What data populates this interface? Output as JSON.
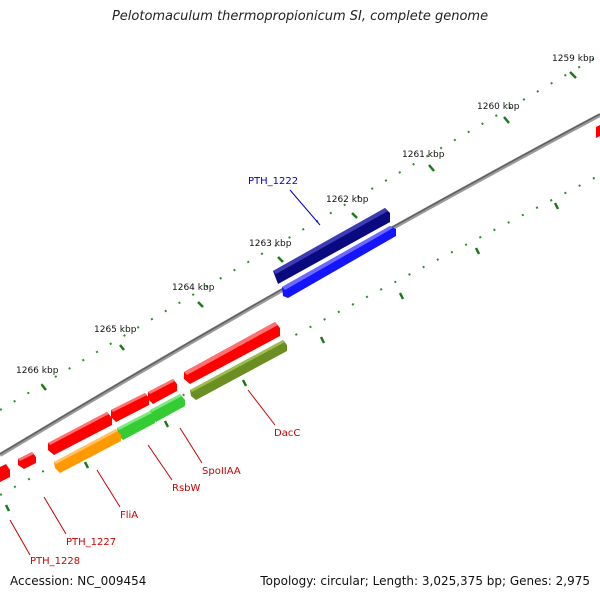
{
  "title": "Pelotomaculum thermopropionicum SI, complete genome",
  "accession_label": "Accession: NC_009454",
  "summary_label": "Topology: circular; Length: 3,025,375 bp; Genes: 2,975",
  "ticks": [
    {
      "label": "1259 kbp"
    },
    {
      "label": "1260 kbp"
    },
    {
      "label": "1261 kbp"
    },
    {
      "label": "1262 kbp"
    },
    {
      "label": "1263 kbp"
    },
    {
      "label": "1264 kbp"
    },
    {
      "label": "1265 kbp"
    },
    {
      "label": "1266 kbp"
    }
  ],
  "genes": [
    {
      "name": "PTH_1222",
      "color": "#0000ff",
      "strand": "minus"
    },
    {
      "name": "DacC",
      "color": "#ff0000",
      "strand": "minus"
    },
    {
      "name": "SpoIIAA",
      "color": "#ff0000",
      "strand": "minus"
    },
    {
      "name": "RsbW",
      "color": "#ff0000",
      "strand": "minus"
    },
    {
      "name": "FliA",
      "color": "#ff0000",
      "strand": "minus"
    },
    {
      "name": "PTH_1227",
      "color": "#ff0000",
      "strand": "minus"
    },
    {
      "name": "PTH_1228",
      "color": "#ff0000",
      "strand": "minus"
    }
  ],
  "colors": {
    "background": "#ffffff",
    "backbone": "#808080",
    "tick": "#1a7a1a",
    "label_blue": "#0000cc",
    "label_red": "#cc0000",
    "cds_blue_dark": "#0a0a80",
    "cds_blue": "#1010ff",
    "cds_red": "#ff0000",
    "cds_green": "#33cc33",
    "cds_olive": "#6b8e23",
    "cds_orange": "#ff9900"
  }
}
